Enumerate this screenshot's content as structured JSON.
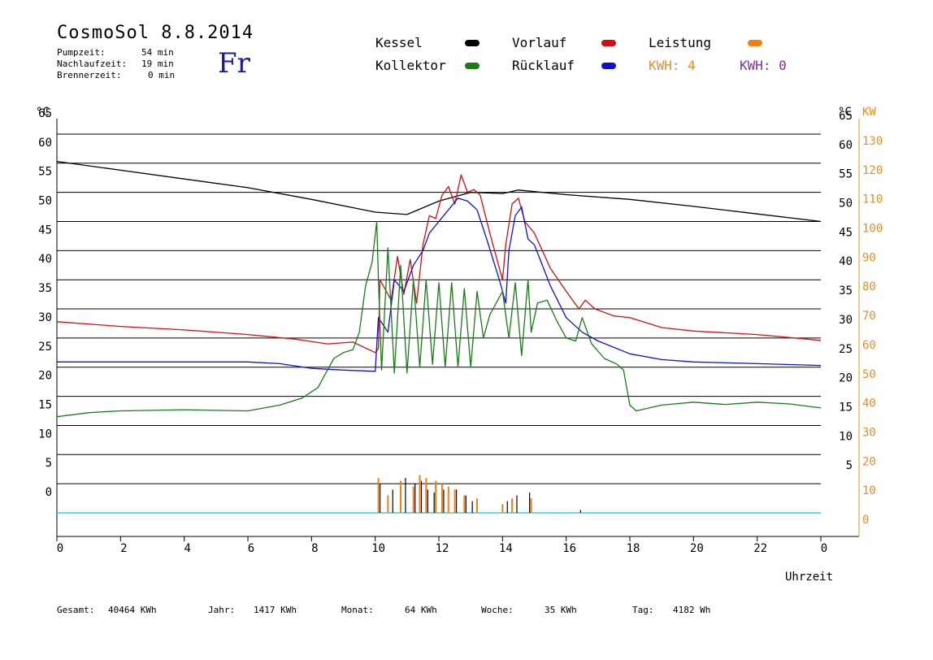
{
  "header": {
    "title": "CosmoSol 8.8.2014",
    "weekday": "Fr",
    "stats": [
      {
        "label": "Pumpzeit:",
        "value": "54 min"
      },
      {
        "label": "Nachlaufzeit:",
        "value": "19 min"
      },
      {
        "label": "Brennerzeit:",
        "value": "0 min"
      }
    ]
  },
  "legend": {
    "kessel": {
      "label": "Kessel",
      "color": "#000000"
    },
    "kollektor": {
      "label": "Kollektor",
      "color": "#1a7a1a"
    },
    "vorlauf": {
      "label": "Vorlauf",
      "color": "#d01010"
    },
    "ruecklauf": {
      "label": "Rücklauf",
      "color": "#1010d0"
    },
    "leistung": {
      "label": "Leistung",
      "color": "#f08010"
    },
    "kwh1": "KWH: 4",
    "kwh1_color": "#e09020",
    "kwh2": "KWH: 0",
    "kwh2_color": "#8030a0"
  },
  "footer": {
    "gesamt_label": "Gesamt:",
    "gesamt_value": "40464 KWh",
    "jahr_label": "Jahr:",
    "jahr_value": "1417 KWh",
    "monat_label": "Monat:",
    "monat_value": "64 KWh",
    "woche_label": "Woche:",
    "woche_value": "35 KWh",
    "tag_label": "Tag:",
    "tag_value": "4182 Wh"
  },
  "chart_data": {
    "type": "line",
    "xlabel": "Uhrzeit",
    "ylabel_left": "°C",
    "ylabel_right": "°C",
    "ylabel_right2": "KW",
    "x_ticks": [
      "0",
      "2",
      "4",
      "6",
      "8",
      "10",
      "12",
      "14",
      "16",
      "18",
      "20",
      "22",
      "0"
    ],
    "x_range": [
      0,
      24
    ],
    "y_ticks_left": [
      "0",
      "5",
      "10",
      "15",
      "20",
      "25",
      "30",
      "35",
      "40",
      "45",
      "50",
      "55",
      "60",
      "65"
    ],
    "y_ticks_right": [
      "5",
      "10",
      "15",
      "20",
      "25",
      "30",
      "35",
      "40",
      "45",
      "50",
      "55",
      "60",
      "65"
    ],
    "y_ticks_kw": [
      "0",
      "10",
      "20",
      "30",
      "40",
      "50",
      "60",
      "70",
      "80",
      "90",
      "100",
      "110",
      "120",
      "130"
    ],
    "ylim": [
      0,
      70
    ],
    "kw_ylim": [
      0,
      140
    ],
    "grid": true,
    "series": [
      {
        "name": "Kessel",
        "color": "#000000",
        "points": [
          [
            0,
            60.3
          ],
          [
            2,
            58.8
          ],
          [
            4,
            57.3
          ],
          [
            6,
            55.8
          ],
          [
            8,
            53.8
          ],
          [
            10,
            51.6
          ],
          [
            11,
            51.2
          ],
          [
            12,
            53.5
          ],
          [
            13,
            55
          ],
          [
            14,
            54.8
          ],
          [
            14.5,
            55.4
          ],
          [
            16,
            54.6
          ],
          [
            18,
            53.8
          ],
          [
            20,
            52.6
          ],
          [
            22,
            51.3
          ],
          [
            24,
            50
          ]
        ]
      },
      {
        "name": "Vorlauf",
        "color": "#d01010",
        "points": [
          [
            0,
            32.8
          ],
          [
            2,
            32
          ],
          [
            4,
            31.4
          ],
          [
            6,
            30.6
          ],
          [
            7.5,
            29.8
          ],
          [
            8.5,
            29
          ],
          [
            9.3,
            29.3
          ],
          [
            10,
            27.5
          ],
          [
            10.1,
            28.2
          ],
          [
            10.15,
            40
          ],
          [
            10.5,
            36.5
          ],
          [
            10.7,
            44
          ],
          [
            10.9,
            37.5
          ],
          [
            11.1,
            43.5
          ],
          [
            11.3,
            36
          ],
          [
            11.5,
            46
          ],
          [
            11.7,
            51
          ],
          [
            11.9,
            50.5
          ],
          [
            12.1,
            54.5
          ],
          [
            12.3,
            56
          ],
          [
            12.5,
            53
          ],
          [
            12.7,
            58
          ],
          [
            12.9,
            55
          ],
          [
            13.1,
            55.5
          ],
          [
            13.3,
            54.5
          ],
          [
            13.6,
            48
          ],
          [
            14,
            40
          ],
          [
            14.1,
            46
          ],
          [
            14.3,
            53
          ],
          [
            14.5,
            54
          ],
          [
            14.7,
            50
          ],
          [
            15,
            48
          ],
          [
            15.5,
            42
          ],
          [
            16,
            38
          ],
          [
            16.4,
            35
          ],
          [
            16.6,
            36.5
          ],
          [
            16.9,
            35
          ],
          [
            17.5,
            33.8
          ],
          [
            18,
            33.5
          ],
          [
            19,
            31.8
          ],
          [
            20,
            31.2
          ],
          [
            22,
            30.6
          ],
          [
            24,
            29.6
          ]
        ]
      },
      {
        "name": "Rücklauf",
        "color": "#1010d0",
        "points": [
          [
            0,
            25.9
          ],
          [
            2,
            25.9
          ],
          [
            4,
            25.9
          ],
          [
            6,
            25.9
          ],
          [
            7,
            25.6
          ],
          [
            8,
            24.8
          ],
          [
            9,
            24.5
          ],
          [
            10,
            24.3
          ],
          [
            10.1,
            33.5
          ],
          [
            10.4,
            31
          ],
          [
            10.6,
            40
          ],
          [
            10.9,
            38
          ],
          [
            11.2,
            42.5
          ],
          [
            11.5,
            45
          ],
          [
            11.7,
            48
          ],
          [
            12,
            50
          ],
          [
            12.3,
            52
          ],
          [
            12.6,
            54
          ],
          [
            12.9,
            53.5
          ],
          [
            13.2,
            52
          ],
          [
            13.5,
            47
          ],
          [
            13.9,
            40
          ],
          [
            14.1,
            36
          ],
          [
            14.2,
            45
          ],
          [
            14.4,
            51
          ],
          [
            14.6,
            52.5
          ],
          [
            14.8,
            47
          ],
          [
            15,
            46
          ],
          [
            15.5,
            39
          ],
          [
            16,
            33.5
          ],
          [
            16.5,
            31
          ],
          [
            17,
            29.5
          ],
          [
            18,
            27.3
          ],
          [
            19,
            26.3
          ],
          [
            20,
            25.9
          ],
          [
            22,
            25.6
          ],
          [
            24,
            25.3
          ]
        ]
      },
      {
        "name": "Kollektor",
        "color": "#1a7a1a",
        "points": [
          [
            0,
            16.5
          ],
          [
            1,
            17.2
          ],
          [
            2,
            17.5
          ],
          [
            4,
            17.7
          ],
          [
            6,
            17.5
          ],
          [
            7,
            18.5
          ],
          [
            7.7,
            19.7
          ],
          [
            8.2,
            21.5
          ],
          [
            8.5,
            24.5
          ],
          [
            8.7,
            26.5
          ],
          [
            9,
            27.5
          ],
          [
            9.3,
            28
          ],
          [
            9.5,
            31
          ],
          [
            9.7,
            39
          ],
          [
            9.9,
            43
          ],
          [
            10.05,
            50
          ],
          [
            10.1,
            40
          ],
          [
            10.2,
            24.5
          ],
          [
            10.4,
            45.5
          ],
          [
            10.6,
            24
          ],
          [
            10.8,
            42.5
          ],
          [
            11,
            24
          ],
          [
            11.2,
            40
          ],
          [
            11.4,
            25
          ],
          [
            11.6,
            40
          ],
          [
            11.8,
            25.5
          ],
          [
            12,
            39.5
          ],
          [
            12.2,
            25
          ],
          [
            12.4,
            39.5
          ],
          [
            12.6,
            25
          ],
          [
            12.8,
            38.5
          ],
          [
            13,
            25
          ],
          [
            13.2,
            38
          ],
          [
            13.4,
            30
          ],
          [
            13.6,
            34
          ],
          [
            13.8,
            36
          ],
          [
            14,
            38
          ],
          [
            14.2,
            30
          ],
          [
            14.4,
            39.5
          ],
          [
            14.6,
            27
          ],
          [
            14.8,
            40
          ],
          [
            14.9,
            31
          ],
          [
            15.1,
            36
          ],
          [
            15.4,
            36.5
          ],
          [
            15.7,
            33
          ],
          [
            16,
            30
          ],
          [
            16.3,
            29.5
          ],
          [
            16.5,
            33.5
          ],
          [
            16.8,
            29
          ],
          [
            17.2,
            26.5
          ],
          [
            17.6,
            25.5
          ],
          [
            17.8,
            24.5
          ],
          [
            18,
            18.5
          ],
          [
            18.2,
            17.5
          ],
          [
            19,
            18.5
          ],
          [
            20,
            19
          ],
          [
            21,
            18.6
          ],
          [
            22,
            19
          ],
          [
            23,
            18.7
          ],
          [
            24,
            18
          ]
        ]
      }
    ],
    "leistung_bars_kw": [
      [
        10.1,
        12
      ],
      [
        10.4,
        6
      ],
      [
        10.8,
        11
      ],
      [
        11.2,
        9
      ],
      [
        11.4,
        13
      ],
      [
        11.6,
        12
      ],
      [
        11.9,
        11
      ],
      [
        12.1,
        10
      ],
      [
        12.3,
        9
      ],
      [
        12.5,
        8
      ],
      [
        12.8,
        6
      ],
      [
        13.2,
        5
      ],
      [
        14.0,
        3
      ],
      [
        14.3,
        5
      ],
      [
        14.9,
        5
      ]
    ],
    "kessel_spikes": [
      [
        10.1,
        10
      ],
      [
        10.5,
        8
      ],
      [
        10.9,
        12
      ],
      [
        11.2,
        10
      ],
      [
        11.4,
        11
      ],
      [
        11.6,
        8
      ],
      [
        11.8,
        7
      ],
      [
        12.1,
        8
      ],
      [
        12.5,
        8
      ],
      [
        12.8,
        6
      ],
      [
        13.0,
        4
      ],
      [
        14.1,
        4
      ],
      [
        14.4,
        6
      ],
      [
        14.8,
        7
      ],
      [
        16.4,
        1
      ]
    ],
    "baseline_kw": 0
  }
}
